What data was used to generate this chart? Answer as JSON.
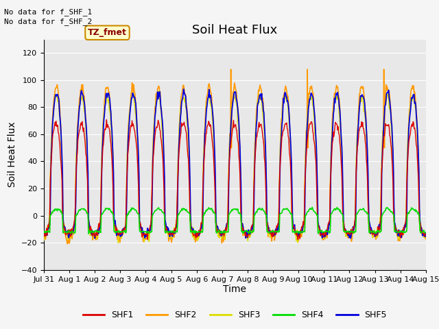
{
  "title": "Soil Heat Flux",
  "ylabel": "Soil Heat Flux",
  "xlabel": "Time",
  "ylim": [
    -40,
    130
  ],
  "yticks": [
    -40,
    -20,
    0,
    20,
    40,
    60,
    80,
    100,
    120
  ],
  "annotation1": "No data for f_SHF_1",
  "annotation2": "No data for f_SHF_2",
  "tz_label": "TZ_fmet",
  "series_colors": {
    "SHF1": "#dd0000",
    "SHF2": "#ff9900",
    "SHF3": "#dddd00",
    "SHF4": "#00dd00",
    "SHF5": "#0000dd"
  },
  "bg_color": "#e8e8e8",
  "title_fontsize": 13,
  "axis_fontsize": 10,
  "tick_fontsize": 8,
  "n_days": 15,
  "pts_per_day": 48
}
